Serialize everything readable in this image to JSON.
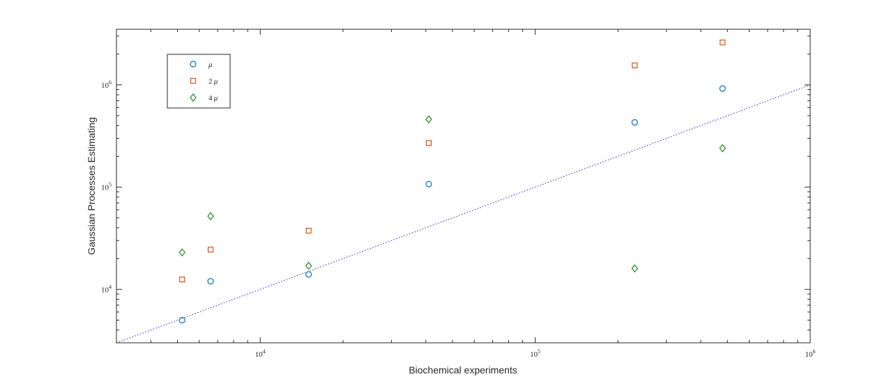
{
  "chart_data": {
    "type": "scatter",
    "xlabel": "Biochemical experiments",
    "ylabel": "Gaussian Processes Estimating",
    "xscale": "log",
    "yscale": "log",
    "xlim": [
      3000,
      1000000
    ],
    "ylim": [
      3000,
      3500000
    ],
    "x_ticks": [
      {
        "value": 10000,
        "base": "10",
        "exp": "4"
      },
      {
        "value": 100000,
        "base": "10",
        "exp": "5"
      },
      {
        "value": 1000000,
        "base": "10",
        "exp": "6"
      }
    ],
    "y_ticks": [
      {
        "value": 10000,
        "base": "10",
        "exp": "4"
      },
      {
        "value": 100000,
        "base": "10",
        "exp": "5"
      },
      {
        "value": 1000000,
        "base": "10",
        "exp": "6"
      }
    ],
    "x": [
      5200,
      6600,
      15000,
      41000,
      230000,
      480000
    ],
    "series": [
      {
        "name": "μ",
        "label_prefix": "",
        "label_symbol": "μ",
        "marker": "circle",
        "color": "#0072BD",
        "values": [
          5000,
          12000,
          14000,
          107000,
          430000,
          920000
        ]
      },
      {
        "name": "2μ",
        "label_prefix": "2",
        "label_symbol": "μ",
        "marker": "square",
        "color": "#D95319",
        "values": [
          12500,
          24500,
          37500,
          270000,
          1550000,
          2600000
        ]
      },
      {
        "name": "4μ",
        "label_prefix": "4",
        "label_symbol": "μ",
        "marker": "diamond",
        "color": "#1E8A1E",
        "values": [
          23000,
          52000,
          17000,
          460000,
          16000,
          240000
        ]
      }
    ],
    "reference_line": {
      "style": "dotted",
      "color": "#2020C0",
      "points": [
        [
          3000,
          3000
        ],
        [
          1000000,
          1000000
        ]
      ]
    },
    "grid": false,
    "legend_position": "top-left"
  }
}
